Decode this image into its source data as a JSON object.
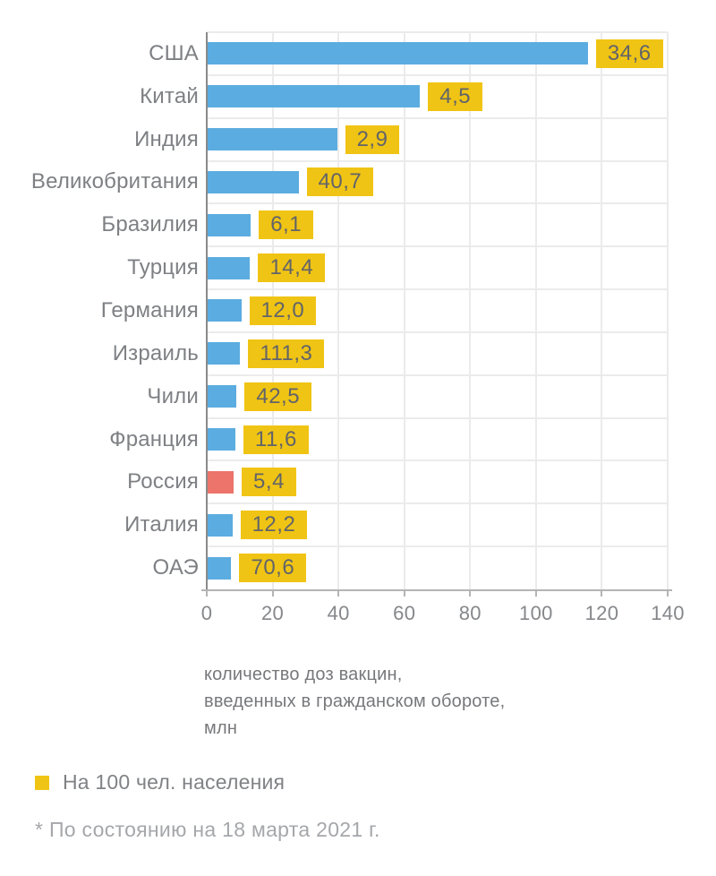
{
  "chart_data": {
    "type": "bar",
    "orientation": "horizontal",
    "categories": [
      "США",
      "Китай",
      "Индия",
      "Великобритания",
      "Бразилия",
      "Турция",
      "Германия",
      "Израиль",
      "Чили",
      "Франция",
      "Россия",
      "Италия",
      "ОАЭ"
    ],
    "series": [
      {
        "name": "количество доз вакцин, введенных в гражданском обороте, млн",
        "values": [
          115.5,
          64.5,
          39.3,
          27.6,
          13.1,
          12.9,
          10.2,
          9.9,
          8.8,
          8.4,
          7.9,
          7.5,
          7.2
        ]
      },
      {
        "name": "На 100 чел. населения",
        "values": [
          34.6,
          4.5,
          2.9,
          40.7,
          6.1,
          14.4,
          12.0,
          111.3,
          42.5,
          11.6,
          5.4,
          12.2,
          70.6
        ],
        "labels": [
          "34,6",
          "4,5",
          "2,9",
          "40,7",
          "6,1",
          "14,4",
          "12,0",
          "111,3",
          "42,5",
          "11,6",
          "5,4",
          "12,2",
          "70,6"
        ],
        "display": "badge"
      }
    ],
    "highlight": {
      "category": "Россия"
    },
    "xlim": [
      0,
      140
    ],
    "x_ticks": [
      0,
      20,
      40,
      60,
      80,
      100,
      120,
      140
    ],
    "grid": true,
    "legend_position": "bottom-left"
  },
  "caption": {
    "line1": "количество доз вакцин,",
    "line2": "введенных в гражданском обороте,",
    "line3": "млн"
  },
  "legend": {
    "label": "На 100 чел. населения"
  },
  "footnote": {
    "text": "* По состоянию на 18 марта 2021 г."
  },
  "colors": {
    "bar_blue": "#5bace0",
    "bar_highlight_red": "#ec746a",
    "badge_yellow": "#f0c414",
    "grid_grey": "#ebebeb",
    "axis_y_grey": "#8a8a8a",
    "axis_x_grey": "#b4b4b6",
    "label_grey": "#7e8084",
    "badge_text_grey": "#626469",
    "footnote_grey": "#a5a7aa"
  }
}
